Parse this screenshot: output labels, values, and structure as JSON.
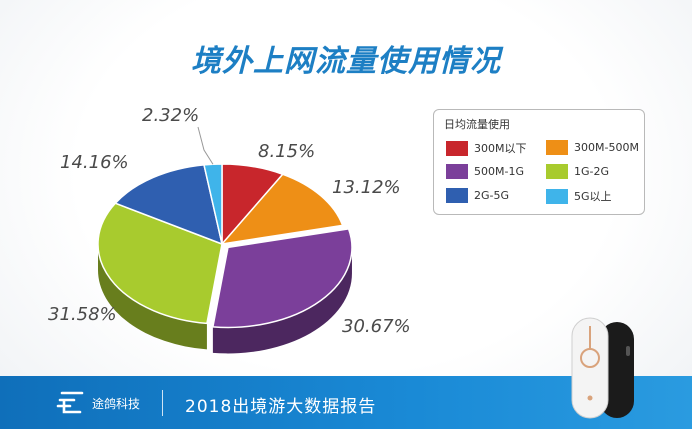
{
  "title": "境外上网流量使用情况",
  "chart_data": {
    "type": "pie",
    "title": "境外上网流量使用情况",
    "legend_title": "日均流量使用",
    "legend_position": "right",
    "categories": [
      "300M以下",
      "300M-500M",
      "500M-1G",
      "1G-2G",
      "2G-5G",
      "5G以上"
    ],
    "values": [
      8.15,
      13.12,
      30.67,
      31.58,
      14.16,
      2.32
    ],
    "labels": [
      "8.15%",
      "13.12%",
      "30.67%",
      "31.58%",
      "14.16%",
      "2.32%"
    ],
    "colors": [
      "#c8262c",
      "#ee8f16",
      "#7b3f9a",
      "#a8cb2e",
      "#2f5fb0",
      "#3fb4ea"
    ],
    "exploded": "500M-1G"
  },
  "footer": {
    "company": "途鸽科技",
    "report_title": "2018出境游大数据报告"
  },
  "icons": {
    "logo": "tuge-logo-icon",
    "device": "wifi-device-icon"
  }
}
